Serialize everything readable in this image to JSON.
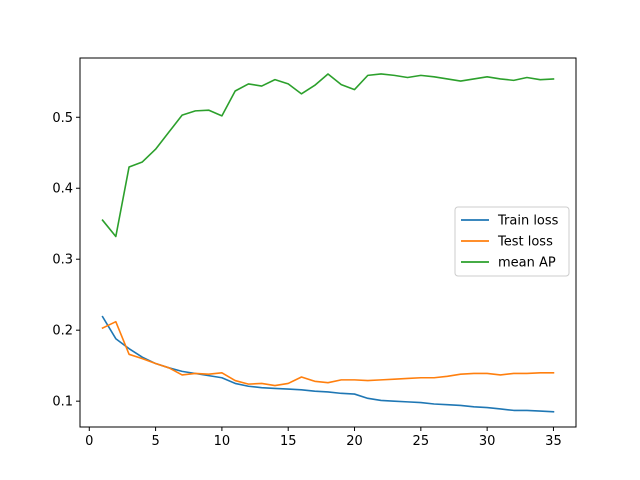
{
  "chart_data": {
    "type": "line",
    "title": "",
    "xlabel": "",
    "ylabel": "",
    "xlim": [
      -0.7,
      36.7
    ],
    "ylim": [
      0.0636,
      0.5835
    ],
    "xticks": [
      0,
      5,
      10,
      15,
      20,
      25,
      30,
      35
    ],
    "yticks": [
      0.1,
      0.2,
      0.3,
      0.4,
      0.5
    ],
    "xtick_labels": [
      "0",
      "5",
      "10",
      "15",
      "20",
      "25",
      "30",
      "35"
    ],
    "ytick_labels": [
      "0.1",
      "0.2",
      "0.3",
      "0.4",
      "0.5"
    ],
    "grid": false,
    "legend_position": "center-right",
    "x": [
      1,
      2,
      3,
      4,
      5,
      6,
      7,
      8,
      9,
      10,
      11,
      12,
      13,
      14,
      15,
      16,
      17,
      18,
      19,
      20,
      21,
      22,
      23,
      24,
      25,
      26,
      27,
      28,
      29,
      30,
      31,
      32,
      33,
      34,
      35
    ],
    "series": [
      {
        "name": "Train loss",
        "color": "#1f77b4",
        "values": [
          0.219,
          0.188,
          0.174,
          0.162,
          0.153,
          0.147,
          0.142,
          0.139,
          0.136,
          0.133,
          0.125,
          0.121,
          0.119,
          0.118,
          0.117,
          0.116,
          0.114,
          0.113,
          0.111,
          0.11,
          0.104,
          0.101,
          0.1,
          0.099,
          0.098,
          0.096,
          0.095,
          0.094,
          0.092,
          0.091,
          0.089,
          0.087,
          0.087,
          0.086,
          0.085
        ]
      },
      {
        "name": "Test loss",
        "color": "#ff7f0e",
        "values": [
          0.203,
          0.212,
          0.166,
          0.16,
          0.153,
          0.147,
          0.137,
          0.139,
          0.138,
          0.14,
          0.129,
          0.124,
          0.125,
          0.122,
          0.125,
          0.134,
          0.128,
          0.126,
          0.13,
          0.13,
          0.129,
          0.13,
          0.131,
          0.132,
          0.133,
          0.133,
          0.135,
          0.138,
          0.139,
          0.139,
          0.137,
          0.139,
          0.139,
          0.14,
          0.14
        ]
      },
      {
        "name": "mean AP",
        "color": "#2ca02c",
        "values": [
          0.355,
          0.332,
          0.43,
          0.437,
          0.455,
          0.479,
          0.503,
          0.509,
          0.51,
          0.502,
          0.537,
          0.547,
          0.544,
          0.553,
          0.547,
          0.533,
          0.545,
          0.561,
          0.546,
          0.539,
          0.559,
          0.561,
          0.559,
          0.556,
          0.559,
          0.557,
          0.554,
          0.551,
          0.554,
          0.557,
          0.554,
          0.552,
          0.556,
          0.553,
          0.554
        ]
      }
    ]
  }
}
